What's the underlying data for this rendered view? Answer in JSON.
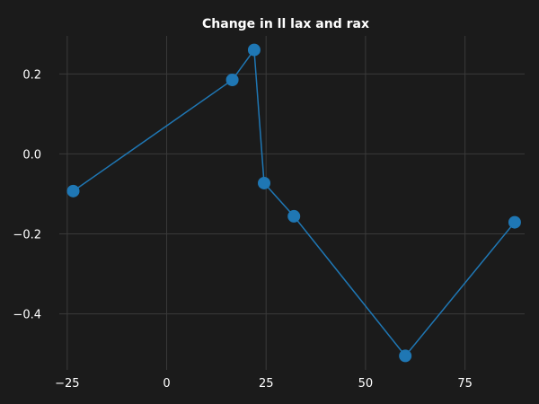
{
  "chart_data": {
    "type": "line",
    "title": "Change in ll lax and rax",
    "xlabel": "",
    "ylabel": "",
    "xlim": [
      -27,
      90
    ],
    "ylim": [
      -0.54,
      0.295
    ],
    "xticks": [
      -25,
      0,
      25,
      50,
      75
    ],
    "yticks": [
      0.2,
      0.0,
      -0.2,
      -0.4
    ],
    "xtick_labels": [
      "−25",
      "0",
      "25",
      "50",
      "75"
    ],
    "ytick_labels": [
      "0.2",
      "0.0",
      "−0.2",
      "−0.4"
    ],
    "grid": true,
    "series": [
      {
        "color": "#1f77b4",
        "x": [
          -23.5,
          16.5,
          22.0,
          24.5,
          32.0,
          60.0,
          87.5
        ],
        "y": [
          -0.093,
          0.185,
          0.26,
          -0.073,
          -0.156,
          -0.505,
          -0.171
        ]
      }
    ]
  }
}
